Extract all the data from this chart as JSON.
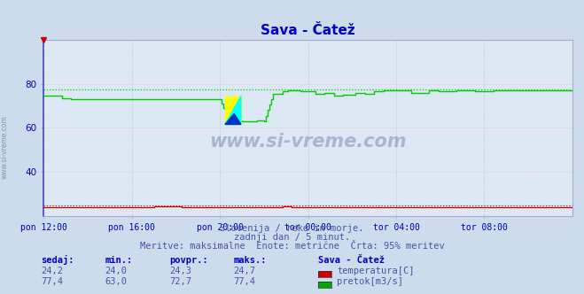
{
  "title": "Sava - Čatež",
  "bg_color": "#ccdcec",
  "plot_bg_color": "#dce8f4",
  "title_color": "#0000cc",
  "grid_color_h": "#ffaaaa",
  "grid_color_v": "#aaaadd",
  "axis_label_color": "#0000aa",
  "xlim": [
    0,
    288
  ],
  "ylim": [
    20,
    100
  ],
  "yticks": [
    40,
    60,
    80
  ],
  "xtick_labels": [
    "pon 12:00",
    "pon 16:00",
    "pon 20:00",
    "tor 00:00",
    "tor 04:00",
    "tor 08:00"
  ],
  "xtick_positions": [
    0,
    48,
    96,
    144,
    192,
    240
  ],
  "watermark": "www.si-vreme.com",
  "subtitle1": "Slovenija / reke in morje.",
  "subtitle2": "zadnji dan / 5 minut.",
  "subtitle3": "Meritve: maksimalne  Enote: metrične  Črta: 95% meritev",
  "subtitle_color": "#4455aa",
  "legend_title": "Sava - Čatež",
  "legend_color1": "#cc0000",
  "legend_label1": "temperatura[C]",
  "legend_color2": "#00aa00",
  "legend_label2": "pretok[m3/s]",
  "stats_headers": [
    "sedaj:",
    "min.:",
    "povpr.:",
    "maks.:"
  ],
  "stats_temp": [
    24.2,
    24.0,
    24.3,
    24.7
  ],
  "stats_flow": [
    77.4,
    63.0,
    72.7,
    77.4
  ],
  "flow_color": "#00cc00",
  "temp_color": "#cc0000",
  "flow_max_line": 77.4,
  "temp_max_line_scaled": 24.7,
  "temp_axis_min": 10.0,
  "temp_axis_max": 40.0,
  "flow_axis_min": 20.0,
  "flow_axis_max": 100.0
}
